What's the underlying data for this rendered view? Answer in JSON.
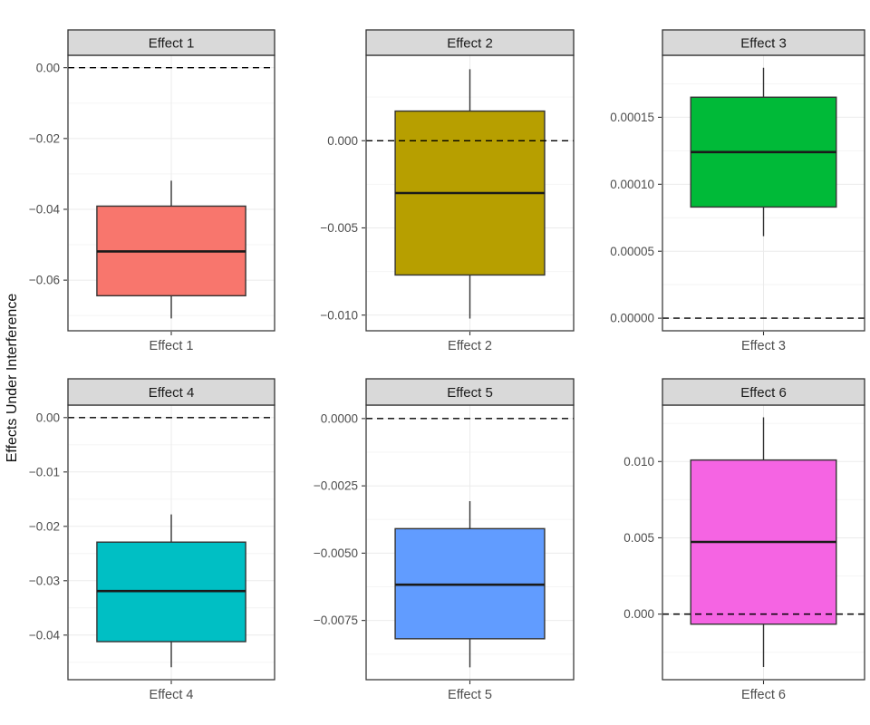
{
  "figure": {
    "background": "#FFFFFF",
    "strip_fill": "#D9D9D9",
    "strip_border": "#333333",
    "panel_border": "#3C3C3C",
    "grid_major": "#EBEBEB",
    "grid_minor": "#F5F5F5",
    "box_stroke": "#333333",
    "median_color": "#1A1A1A",
    "whisker_color": "#333333",
    "ref_line_color": "#000000",
    "axis_text_color": "#4D4D4D",
    "strip_text_color": "#1A1A1A"
  },
  "chart_data": {
    "type": "boxplot",
    "title": "",
    "ylabel": "Effects Under Interference",
    "xlabel": "",
    "grid": true,
    "legend": "none",
    "layout": "2 rows x 3 columns facets, free y scales, dashed reference line at 0",
    "facets": [
      {
        "title": "Effect 1",
        "x_category": "Effect 1",
        "fill": "#F8766D",
        "ylim": [
          -0.0743,
          0.0035
        ],
        "yticks": [
          {
            "value": 0.0,
            "label": "0.00"
          },
          {
            "value": -0.02,
            "label": "−0.02"
          },
          {
            "value": -0.04,
            "label": "−0.04"
          },
          {
            "value": -0.06,
            "label": "−0.06"
          }
        ],
        "box": {
          "whisker_low": -0.0708,
          "q1": -0.0644,
          "median": -0.0519,
          "q3": -0.0391,
          "whisker_high": -0.0319
        },
        "reference_line": 0
      },
      {
        "title": "Effect 2",
        "x_category": "Effect 2",
        "fill": "#B79F00",
        "ylim": [
          -0.0109,
          0.0049
        ],
        "yticks": [
          {
            "value": 0.0,
            "label": "0.000"
          },
          {
            "value": -0.005,
            "label": "−0.005"
          },
          {
            "value": -0.01,
            "label": "−0.010"
          }
        ],
        "box": {
          "whisker_low": -0.0102,
          "q1": -0.0077,
          "median": -0.003,
          "q3": 0.0017,
          "whisker_high": 0.0041
        },
        "reference_line": 0
      },
      {
        "title": "Effect 3",
        "x_category": "Effect 3",
        "fill": "#00BA38",
        "ylim": [
          -9.4e-06,
          0.0001963
        ],
        "yticks": [
          {
            "value": 0.00015,
            "label": "0.00015"
          },
          {
            "value": 0.0001,
            "label": "0.00010"
          },
          {
            "value": 5e-05,
            "label": "0.00005"
          },
          {
            "value": 0.0,
            "label": "0.00000"
          }
        ],
        "box": {
          "whisker_low": 6.12e-05,
          "q1": 8.3e-05,
          "median": 0.000124,
          "q3": 0.000165,
          "whisker_high": 0.000187
        },
        "reference_line": 0
      },
      {
        "title": "Effect 4",
        "x_category": "Effect 4",
        "fill": "#00BFC4",
        "ylim": [
          -0.0482,
          0.0023
        ],
        "yticks": [
          {
            "value": 0.0,
            "label": "0.00"
          },
          {
            "value": -0.01,
            "label": "−0.01"
          },
          {
            "value": -0.02,
            "label": "−0.02"
          },
          {
            "value": -0.03,
            "label": "−0.03"
          },
          {
            "value": -0.04,
            "label": "−0.04"
          }
        ],
        "box": {
          "whisker_low": -0.0459,
          "q1": -0.0412,
          "median": -0.0319,
          "q3": -0.0229,
          "whisker_high": -0.0178
        },
        "reference_line": 0
      },
      {
        "title": "Effect 5",
        "x_category": "Effect 5",
        "fill": "#619CFF",
        "ylim": [
          -0.0097,
          0.0005
        ],
        "yticks": [
          {
            "value": 0.0,
            "label": "0.0000"
          },
          {
            "value": -0.0025,
            "label": "−0.0025"
          },
          {
            "value": -0.005,
            "label": "−0.0050"
          },
          {
            "value": -0.0075,
            "label": "−0.0075"
          }
        ],
        "box": {
          "whisker_low": -0.00924,
          "q1": -0.00818,
          "median": -0.00617,
          "q3": -0.00409,
          "whisker_high": -0.00307
        },
        "reference_line": 0
      },
      {
        "title": "Effect 6",
        "x_category": "Effect 6",
        "fill": "#F564E3",
        "ylim": [
          -0.0043,
          0.0137
        ],
        "yticks": [
          {
            "value": 0.01,
            "label": "0.010"
          },
          {
            "value": 0.005,
            "label": "0.005"
          },
          {
            "value": 0.0,
            "label": "0.000"
          }
        ],
        "box": {
          "whisker_low": -0.00347,
          "q1": -0.00066,
          "median": 0.00473,
          "q3": 0.0101,
          "whisker_high": 0.0129
        },
        "reference_line": 0
      }
    ]
  }
}
